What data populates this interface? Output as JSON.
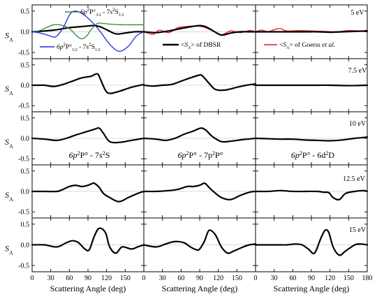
{
  "chart_data": {
    "type": "line",
    "xlabel": "Scattering Angle (deg)",
    "ylabel": "S_A",
    "xlim": [
      0,
      180
    ],
    "ylim": [
      -0.65,
      0.65
    ],
    "xticks": [
      0,
      30,
      60,
      90,
      120,
      150,
      180
    ],
    "xtick_labels_left": [
      "0",
      "30",
      "60",
      "90",
      "120",
      "150"
    ],
    "xtick_labels_middle": [
      "0",
      "30",
      "60",
      "90",
      "120",
      "150"
    ],
    "xtick_labels_right": [
      "0",
      "30",
      "60",
      "90",
      "120",
      "150",
      "180"
    ],
    "yticks": [
      0.5,
      0.0,
      -0.5
    ],
    "ytick_labels": [
      "0.5",
      "0.0",
      "-0.5"
    ],
    "energies": [
      "5 eV",
      "7.5 eV",
      "10 eV",
      "12.5 eV",
      "15 eV"
    ],
    "transitions": [
      {
        "base": "6p",
        "sup1": "2",
        "rest1": "P° - 7s",
        "sup2": "2",
        "rest2": "S"
      },
      {
        "base": "6p",
        "sup1": "2",
        "rest1": "P° - 7p",
        "sup2": "2",
        "rest2": "P°"
      },
      {
        "base": "6p",
        "sup1": "2",
        "rest1": "P° - 6d",
        "sup2": "2",
        "rest2": "D"
      }
    ],
    "legend": {
      "green": {
        "a": "6p",
        "b": "2",
        "c": "P°",
        "d": "3/2",
        "e": " - 7s",
        "f": "2",
        "g": "S",
        "h": "1/2"
      },
      "blue": {
        "a": "6p",
        "b": "2",
        "c": "P°",
        "d": "1/2",
        "e": " - 7s",
        "f": "2",
        "g": "S",
        "h": "1/2"
      },
      "dbsr": {
        "l": "<",
        "s": "S",
        "sub": "A",
        "r": "> of DBSR"
      },
      "goerss": {
        "l": "<",
        "s": "S",
        "sub": "A",
        "r": "> of Goerss ",
        "em": "et al."
      }
    },
    "colors": {
      "dbsr": "#000000",
      "goerss": "#e8141b",
      "green": "#2e8b2e",
      "blue": "#1f2be0",
      "zero_line": "#8c8c8c"
    },
    "series": [
      {
        "row": 0,
        "col": 0,
        "color": "#000000",
        "x": [
          0,
          20,
          40,
          60,
          75,
          90,
          100,
          110,
          120,
          135,
          150,
          165,
          180
        ],
        "y": [
          0,
          0.02,
          0.05,
          0.1,
          0.12,
          0.14,
          0.15,
          0.12,
          0.05,
          -0.05,
          -0.03,
          0,
          0
        ]
      },
      {
        "row": 0,
        "col": 0,
        "color": "#2e8b2e",
        "x": [
          0,
          10,
          20,
          35,
          50,
          62,
          72,
          80,
          88,
          95,
          105,
          115,
          130,
          145,
          165,
          180
        ],
        "y": [
          0,
          0.02,
          0.08,
          0.17,
          0.15,
          0.05,
          -0.1,
          -0.17,
          -0.1,
          0.05,
          0.2,
          0.2,
          0.18,
          0.17,
          0.17,
          0.17
        ]
      },
      {
        "row": 0,
        "col": 0,
        "color": "#1f2be0",
        "x": [
          0,
          10,
          25,
          38,
          50,
          60,
          68,
          80,
          90,
          100,
          110,
          125,
          140,
          155,
          168,
          180
        ],
        "y": [
          0,
          -0.02,
          -0.08,
          -0.12,
          0.1,
          0.4,
          0.5,
          0.45,
          0.33,
          0.18,
          0,
          -0.3,
          -0.47,
          -0.35,
          -0.1,
          0
        ]
      },
      {
        "row": 0,
        "col": 1,
        "color": "#e8141b",
        "x": [
          0,
          15,
          25,
          40,
          55,
          65,
          80,
          95,
          110,
          125,
          140,
          155,
          170,
          180
        ],
        "y": [
          0,
          -0.06,
          0.04,
          -0.02,
          0.1,
          0.12,
          0.14,
          0.12,
          0.03,
          -0.07,
          0.02,
          -0.02,
          0.03,
          0
        ]
      },
      {
        "row": 0,
        "col": 1,
        "color": "#000000",
        "x": [
          0,
          20,
          40,
          60,
          75,
          90,
          100,
          112,
          125,
          140,
          155,
          170,
          180
        ],
        "y": [
          0,
          -0.02,
          0.02,
          0.08,
          0.12,
          0.15,
          0.12,
          0.02,
          -0.08,
          -0.03,
          0,
          0,
          0
        ]
      },
      {
        "row": 0,
        "col": 2,
        "color": "#e8141b",
        "x": [
          0,
          10,
          20,
          30,
          40,
          50,
          70,
          90,
          110,
          130,
          150,
          170,
          180
        ],
        "y": [
          0,
          0.04,
          0,
          0.05,
          0.08,
          0.02,
          0.03,
          0.02,
          0.01,
          0,
          0.03,
          0.02,
          0.04
        ]
      },
      {
        "row": 0,
        "col": 2,
        "color": "#000000",
        "x": [
          0,
          20,
          40,
          60,
          80,
          100,
          120,
          140,
          160,
          180
        ],
        "y": [
          0,
          0,
          0,
          0,
          0,
          0,
          -0.01,
          0,
          0.01,
          0.02
        ]
      },
      {
        "row": 1,
        "col": 0,
        "color": "#000000",
        "x": [
          0,
          10,
          20,
          35,
          50,
          65,
          80,
          95,
          105,
          110,
          118,
          125,
          140,
          160,
          180
        ],
        "y": [
          0,
          0,
          0,
          -0.03,
          0.02,
          0.1,
          0.18,
          0.22,
          0.28,
          0.15,
          -0.12,
          -0.2,
          -0.15,
          -0.05,
          0.02
        ]
      },
      {
        "row": 1,
        "col": 1,
        "color": "#000000",
        "x": [
          0,
          15,
          30,
          45,
          60,
          75,
          90,
          95,
          105,
          115,
          130,
          150,
          165,
          180
        ],
        "y": [
          0,
          -0.02,
          0,
          0.02,
          0.1,
          0.18,
          0.25,
          0.22,
          0.05,
          -0.1,
          -0.12,
          -0.05,
          0,
          0.03
        ]
      },
      {
        "row": 1,
        "col": 2,
        "color": "#000000",
        "x": [
          0,
          30,
          60,
          90,
          120,
          150,
          180
        ],
        "y": [
          0,
          0,
          0,
          0,
          0,
          -0.01,
          0
        ]
      },
      {
        "row": 2,
        "col": 0,
        "color": "#000000",
        "x": [
          0,
          20,
          40,
          55,
          70,
          85,
          100,
          108,
          115,
          125,
          140,
          160,
          180
        ],
        "y": [
          0,
          -0.02,
          -0.05,
          0,
          0.08,
          0.15,
          0.22,
          0.25,
          0.12,
          -0.08,
          -0.1,
          -0.05,
          0
        ]
      },
      {
        "row": 2,
        "col": 1,
        "color": "#000000",
        "x": [
          0,
          20,
          35,
          50,
          65,
          80,
          92,
          100,
          110,
          125,
          140,
          160,
          180
        ],
        "y": [
          0,
          -0.02,
          -0.05,
          0,
          0.1,
          0.18,
          0.25,
          0.2,
          0.05,
          -0.08,
          -0.07,
          -0.03,
          0
        ]
      },
      {
        "row": 2,
        "col": 2,
        "color": "#000000",
        "x": [
          0,
          20,
          40,
          60,
          80,
          100,
          120,
          140,
          160,
          180
        ],
        "y": [
          0,
          -0.01,
          -0.02,
          -0.02,
          -0.04,
          -0.05,
          -0.06,
          -0.04,
          0,
          0.03
        ]
      },
      {
        "row": 3,
        "col": 0,
        "color": "#000000",
        "x": [
          0,
          20,
          40,
          50,
          60,
          70,
          80,
          90,
          95,
          100,
          108,
          115,
          125,
          140,
          155,
          170,
          180
        ],
        "y": [
          0,
          0,
          0,
          0.05,
          0.12,
          0.15,
          0.12,
          0.15,
          0.18,
          0.2,
          0.1,
          -0.05,
          -0.15,
          -0.25,
          -0.15,
          -0.05,
          0
        ]
      },
      {
        "row": 3,
        "col": 1,
        "color": "#000000",
        "x": [
          0,
          20,
          40,
          55,
          70,
          80,
          90,
          98,
          105,
          112,
          125,
          140,
          155,
          170,
          180
        ],
        "y": [
          0,
          0,
          0.02,
          0.05,
          0.12,
          0.12,
          0.15,
          0.2,
          0.1,
          0,
          -0.15,
          -0.2,
          -0.1,
          -0.02,
          0
        ]
      },
      {
        "row": 3,
        "col": 2,
        "color": "#000000",
        "x": [
          0,
          20,
          40,
          60,
          80,
          100,
          110,
          118,
          125,
          135,
          145,
          160,
          175,
          180
        ],
        "y": [
          0,
          0,
          0.02,
          0,
          0,
          0,
          -0.02,
          -0.03,
          -0.15,
          -0.2,
          -0.05,
          0,
          0.02,
          0
        ]
      },
      {
        "row": 4,
        "col": 0,
        "color": "#000000",
        "x": [
          0,
          20,
          40,
          55,
          65,
          75,
          85,
          92,
          100,
          108,
          118,
          125,
          135,
          145,
          160,
          170,
          180
        ],
        "y": [
          0,
          0,
          -0.05,
          0.05,
          0.1,
          0.05,
          -0.1,
          -0.12,
          0.2,
          0.4,
          0.3,
          -0.05,
          -0.2,
          -0.05,
          -0.1,
          -0.05,
          0
        ]
      },
      {
        "row": 4,
        "col": 1,
        "color": "#000000",
        "x": [
          0,
          20,
          35,
          50,
          65,
          75,
          85,
          90,
          98,
          105,
          115,
          125,
          135,
          145,
          160,
          170,
          180
        ],
        "y": [
          0,
          -0.05,
          0.02,
          0.08,
          0.05,
          -0.05,
          -0.12,
          -0.1,
          0.1,
          0.35,
          0.25,
          -0.05,
          -0.2,
          -0.15,
          -0.05,
          0,
          0.02
        ]
      },
      {
        "row": 4,
        "col": 2,
        "color": "#000000",
        "x": [
          0,
          20,
          40,
          50,
          65,
          75,
          85,
          95,
          105,
          112,
          118,
          125,
          135,
          145,
          160,
          170,
          180
        ],
        "y": [
          0,
          0,
          0,
          0,
          0.02,
          0,
          -0.1,
          -0.2,
          0.15,
          0.35,
          0.3,
          -0.05,
          -0.25,
          -0.15,
          0,
          0.02,
          0
        ]
      }
    ]
  }
}
